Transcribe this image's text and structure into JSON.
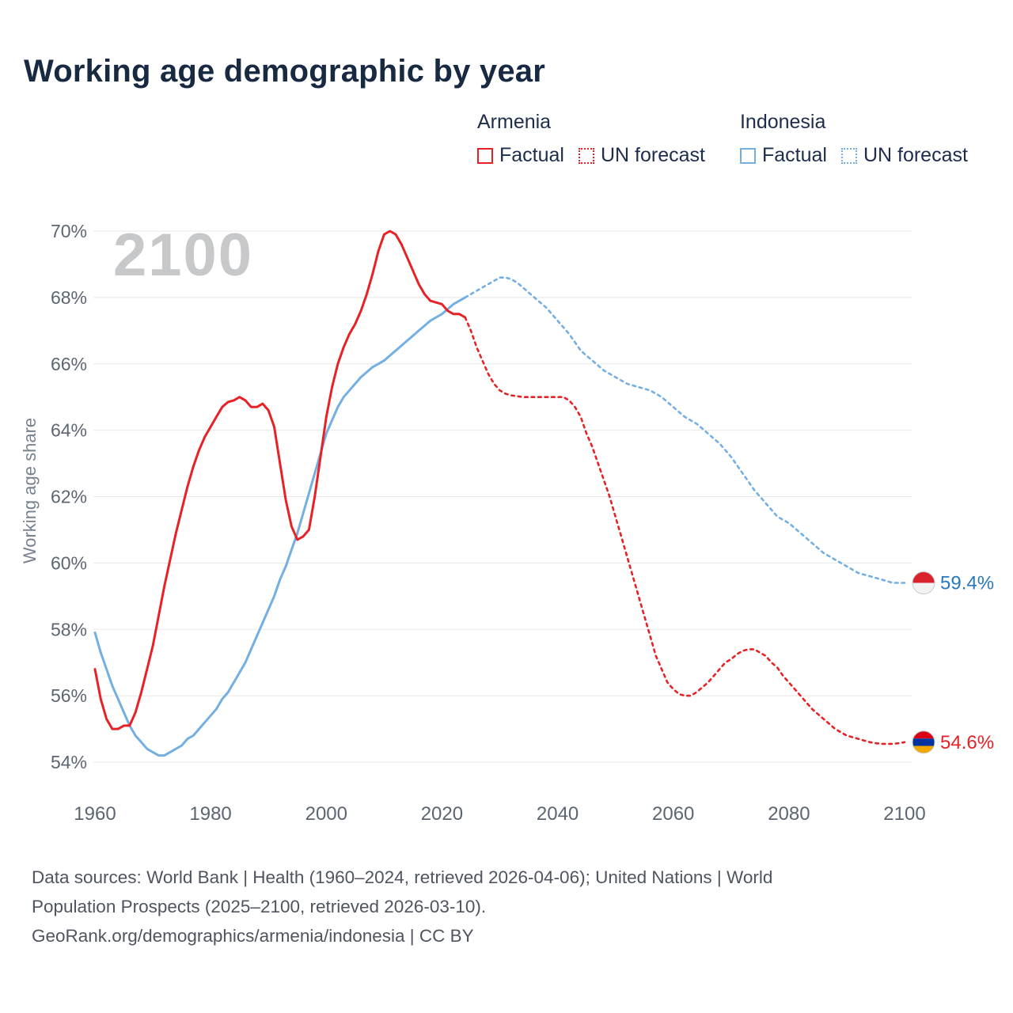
{
  "title": "Working age demographic by year",
  "watermark": "2100",
  "legend": {
    "groups": [
      {
        "country": "Armenia",
        "color": "#e62226",
        "items": [
          {
            "label": "Factual",
            "style": "solid"
          },
          {
            "label": "UN forecast",
            "style": "dotted"
          }
        ]
      },
      {
        "country": "Indonesia",
        "color": "#74afe3",
        "items": [
          {
            "label": "Factual",
            "style": "solid"
          },
          {
            "label": "UN forecast",
            "style": "dotted"
          }
        ]
      }
    ]
  },
  "chart_data": {
    "type": "line",
    "title": "Working age demographic by year",
    "xlabel": "",
    "ylabel": "Working age share",
    "x_ticks": [
      1960,
      1980,
      2000,
      2020,
      2040,
      2060,
      2080,
      2100
    ],
    "y_ticks": [
      54,
      56,
      58,
      60,
      62,
      64,
      66,
      68,
      70
    ],
    "y_suffix": "%",
    "xlim": [
      1960,
      2104
    ],
    "ylim": [
      53.4,
      70.6
    ],
    "grid": "horizontal",
    "legend_position": "top-right",
    "series": [
      {
        "name": "Indonesia Factual",
        "color": "#74afe3",
        "dash": false,
        "points": [
          [
            1960,
            57.9
          ],
          [
            1961,
            57.3
          ],
          [
            1962,
            56.8
          ],
          [
            1963,
            56.3
          ],
          [
            1964,
            55.9
          ],
          [
            1965,
            55.5
          ],
          [
            1966,
            55.1
          ],
          [
            1967,
            54.8
          ],
          [
            1968,
            54.6
          ],
          [
            1969,
            54.4
          ],
          [
            1970,
            54.3
          ],
          [
            1971,
            54.2
          ],
          [
            1972,
            54.2
          ],
          [
            1973,
            54.3
          ],
          [
            1974,
            54.4
          ],
          [
            1975,
            54.5
          ],
          [
            1976,
            54.7
          ],
          [
            1977,
            54.8
          ],
          [
            1978,
            55.0
          ],
          [
            1979,
            55.2
          ],
          [
            1980,
            55.4
          ],
          [
            1981,
            55.6
          ],
          [
            1982,
            55.9
          ],
          [
            1983,
            56.1
          ],
          [
            1984,
            56.4
          ],
          [
            1985,
            56.7
          ],
          [
            1986,
            57.0
          ],
          [
            1987,
            57.4
          ],
          [
            1988,
            57.8
          ],
          [
            1989,
            58.2
          ],
          [
            1990,
            58.6
          ],
          [
            1991,
            59.0
          ],
          [
            1992,
            59.5
          ],
          [
            1993,
            59.9
          ],
          [
            1994,
            60.4
          ],
          [
            1995,
            60.9
          ],
          [
            1996,
            61.5
          ],
          [
            1997,
            62.1
          ],
          [
            1998,
            62.7
          ],
          [
            1999,
            63.3
          ],
          [
            2000,
            63.9
          ],
          [
            2001,
            64.3
          ],
          [
            2002,
            64.7
          ],
          [
            2003,
            65.0
          ],
          [
            2004,
            65.2
          ],
          [
            2005,
            65.4
          ],
          [
            2006,
            65.6
          ],
          [
            2007,
            65.75
          ],
          [
            2008,
            65.9
          ],
          [
            2009,
            66.0
          ],
          [
            2010,
            66.1
          ],
          [
            2011,
            66.25
          ],
          [
            2012,
            66.4
          ],
          [
            2013,
            66.55
          ],
          [
            2014,
            66.7
          ],
          [
            2015,
            66.85
          ],
          [
            2016,
            67.0
          ],
          [
            2017,
            67.15
          ],
          [
            2018,
            67.3
          ],
          [
            2019,
            67.4
          ],
          [
            2020,
            67.5
          ],
          [
            2021,
            67.65
          ],
          [
            2022,
            67.8
          ],
          [
            2023,
            67.9
          ],
          [
            2024,
            68.0
          ]
        ]
      },
      {
        "name": "Indonesia UN forecast",
        "color": "#74afe3",
        "dash": true,
        "points": [
          [
            2024,
            68.0
          ],
          [
            2025,
            68.1
          ],
          [
            2026,
            68.2
          ],
          [
            2027,
            68.3
          ],
          [
            2028,
            68.4
          ],
          [
            2029,
            68.5
          ],
          [
            2030,
            68.6
          ],
          [
            2031,
            68.6
          ],
          [
            2032,
            68.55
          ],
          [
            2033,
            68.45
          ],
          [
            2034,
            68.3
          ],
          [
            2035,
            68.15
          ],
          [
            2036,
            68.0
          ],
          [
            2037,
            67.85
          ],
          [
            2038,
            67.7
          ],
          [
            2039,
            67.5
          ],
          [
            2040,
            67.3
          ],
          [
            2041,
            67.1
          ],
          [
            2042,
            66.9
          ],
          [
            2043,
            66.65
          ],
          [
            2044,
            66.4
          ],
          [
            2045,
            66.25
          ],
          [
            2046,
            66.1
          ],
          [
            2047,
            65.95
          ],
          [
            2048,
            65.8
          ],
          [
            2049,
            65.7
          ],
          [
            2050,
            65.6
          ],
          [
            2051,
            65.5
          ],
          [
            2052,
            65.4
          ],
          [
            2053,
            65.35
          ],
          [
            2054,
            65.3
          ],
          [
            2055,
            65.25
          ],
          [
            2056,
            65.2
          ],
          [
            2057,
            65.1
          ],
          [
            2058,
            65.0
          ],
          [
            2059,
            64.85
          ],
          [
            2060,
            64.7
          ],
          [
            2061,
            64.55
          ],
          [
            2062,
            64.4
          ],
          [
            2063,
            64.3
          ],
          [
            2064,
            64.2
          ],
          [
            2065,
            64.05
          ],
          [
            2066,
            63.9
          ],
          [
            2067,
            63.75
          ],
          [
            2068,
            63.6
          ],
          [
            2069,
            63.4
          ],
          [
            2070,
            63.2
          ],
          [
            2071,
            62.95
          ],
          [
            2072,
            62.7
          ],
          [
            2073,
            62.45
          ],
          [
            2074,
            62.2
          ],
          [
            2075,
            62.0
          ],
          [
            2076,
            61.8
          ],
          [
            2077,
            61.6
          ],
          [
            2078,
            61.4
          ],
          [
            2079,
            61.3
          ],
          [
            2080,
            61.2
          ],
          [
            2081,
            61.05
          ],
          [
            2082,
            60.9
          ],
          [
            2083,
            60.75
          ],
          [
            2084,
            60.6
          ],
          [
            2085,
            60.45
          ],
          [
            2086,
            60.3
          ],
          [
            2087,
            60.2
          ],
          [
            2088,
            60.1
          ],
          [
            2089,
            60.0
          ],
          [
            2090,
            59.9
          ],
          [
            2091,
            59.8
          ],
          [
            2092,
            59.7
          ],
          [
            2093,
            59.65
          ],
          [
            2094,
            59.6
          ],
          [
            2095,
            59.55
          ],
          [
            2096,
            59.5
          ],
          [
            2097,
            59.45
          ],
          [
            2098,
            59.4
          ],
          [
            2099,
            59.4
          ],
          [
            2100,
            59.4
          ]
        ]
      },
      {
        "name": "Armenia Factual",
        "color": "#e62226",
        "dash": false,
        "points": [
          [
            1960,
            56.8
          ],
          [
            1961,
            55.9
          ],
          [
            1962,
            55.3
          ],
          [
            1963,
            55.0
          ],
          [
            1964,
            55.0
          ],
          [
            1965,
            55.1
          ],
          [
            1966,
            55.1
          ],
          [
            1967,
            55.5
          ],
          [
            1968,
            56.1
          ],
          [
            1969,
            56.8
          ],
          [
            1970,
            57.5
          ],
          [
            1971,
            58.4
          ],
          [
            1972,
            59.3
          ],
          [
            1973,
            60.1
          ],
          [
            1974,
            60.9
          ],
          [
            1975,
            61.6
          ],
          [
            1976,
            62.3
          ],
          [
            1977,
            62.9
          ],
          [
            1978,
            63.4
          ],
          [
            1979,
            63.8
          ],
          [
            1980,
            64.1
          ],
          [
            1981,
            64.4
          ],
          [
            1982,
            64.7
          ],
          [
            1983,
            64.85
          ],
          [
            1984,
            64.9
          ],
          [
            1985,
            65.0
          ],
          [
            1986,
            64.9
          ],
          [
            1987,
            64.7
          ],
          [
            1988,
            64.7
          ],
          [
            1989,
            64.8
          ],
          [
            1990,
            64.6
          ],
          [
            1991,
            64.1
          ],
          [
            1992,
            63.0
          ],
          [
            1993,
            61.9
          ],
          [
            1994,
            61.1
          ],
          [
            1995,
            60.7
          ],
          [
            1996,
            60.8
          ],
          [
            1997,
            61.0
          ],
          [
            1998,
            62.0
          ],
          [
            1999,
            63.2
          ],
          [
            2000,
            64.4
          ],
          [
            2001,
            65.3
          ],
          [
            2002,
            66.0
          ],
          [
            2003,
            66.5
          ],
          [
            2004,
            66.9
          ],
          [
            2005,
            67.2
          ],
          [
            2006,
            67.6
          ],
          [
            2007,
            68.1
          ],
          [
            2008,
            68.7
          ],
          [
            2009,
            69.4
          ],
          [
            2010,
            69.9
          ],
          [
            2011,
            70.0
          ],
          [
            2012,
            69.9
          ],
          [
            2013,
            69.6
          ],
          [
            2014,
            69.2
          ],
          [
            2015,
            68.8
          ],
          [
            2016,
            68.4
          ],
          [
            2017,
            68.1
          ],
          [
            2018,
            67.9
          ],
          [
            2019,
            67.85
          ],
          [
            2020,
            67.8
          ],
          [
            2021,
            67.6
          ],
          [
            2022,
            67.5
          ],
          [
            2023,
            67.5
          ],
          [
            2024,
            67.4
          ]
        ]
      },
      {
        "name": "Armenia UN forecast",
        "color": "#e62226",
        "dash": true,
        "points": [
          [
            2024,
            67.4
          ],
          [
            2025,
            67.0
          ],
          [
            2026,
            66.5
          ],
          [
            2027,
            66.1
          ],
          [
            2028,
            65.7
          ],
          [
            2029,
            65.4
          ],
          [
            2030,
            65.2
          ],
          [
            2031,
            65.1
          ],
          [
            2032,
            65.05
          ],
          [
            2034,
            65.0
          ],
          [
            2036,
            65.0
          ],
          [
            2038,
            65.0
          ],
          [
            2040,
            65.0
          ],
          [
            2041,
            65.0
          ],
          [
            2042,
            64.9
          ],
          [
            2043,
            64.7
          ],
          [
            2044,
            64.4
          ],
          [
            2045,
            63.9
          ],
          [
            2046,
            63.5
          ],
          [
            2047,
            63.0
          ],
          [
            2048,
            62.5
          ],
          [
            2049,
            62.0
          ],
          [
            2050,
            61.4
          ],
          [
            2051,
            60.8
          ],
          [
            2052,
            60.2
          ],
          [
            2053,
            59.6
          ],
          [
            2054,
            59.0
          ],
          [
            2055,
            58.4
          ],
          [
            2056,
            57.8
          ],
          [
            2057,
            57.2
          ],
          [
            2058,
            56.8
          ],
          [
            2059,
            56.4
          ],
          [
            2060,
            56.2
          ],
          [
            2061,
            56.05
          ],
          [
            2062,
            56.0
          ],
          [
            2063,
            56.0
          ],
          [
            2064,
            56.1
          ],
          [
            2065,
            56.25
          ],
          [
            2066,
            56.4
          ],
          [
            2067,
            56.6
          ],
          [
            2068,
            56.8
          ],
          [
            2069,
            57.0
          ],
          [
            2070,
            57.1
          ],
          [
            2071,
            57.25
          ],
          [
            2072,
            57.35
          ],
          [
            2073,
            57.4
          ],
          [
            2074,
            57.4
          ],
          [
            2075,
            57.3
          ],
          [
            2076,
            57.2
          ],
          [
            2077,
            57.0
          ],
          [
            2078,
            56.85
          ],
          [
            2079,
            56.6
          ],
          [
            2080,
            56.4
          ],
          [
            2081,
            56.2
          ],
          [
            2082,
            56.0
          ],
          [
            2083,
            55.8
          ],
          [
            2084,
            55.6
          ],
          [
            2085,
            55.45
          ],
          [
            2086,
            55.3
          ],
          [
            2087,
            55.15
          ],
          [
            2088,
            55.0
          ],
          [
            2089,
            54.9
          ],
          [
            2090,
            54.8
          ],
          [
            2091,
            54.75
          ],
          [
            2092,
            54.7
          ],
          [
            2093,
            54.65
          ],
          [
            2094,
            54.6
          ],
          [
            2095,
            54.57
          ],
          [
            2096,
            54.55
          ],
          [
            2097,
            54.55
          ],
          [
            2098,
            54.55
          ],
          [
            2099,
            54.57
          ],
          [
            2100,
            54.6
          ]
        ]
      }
    ],
    "end_labels": [
      {
        "text": "59.4%",
        "value": 59.4,
        "color": "#2878be",
        "flag": "indonesia-flag",
        "flag_stripes": [
          "#d8232c",
          "#f2f2f2"
        ]
      },
      {
        "text": "54.6%",
        "value": 54.6,
        "color": "#e62226",
        "flag": "armenia-flag",
        "flag_stripes": [
          "#d90012",
          "#0033a0",
          "#f2a800"
        ]
      }
    ]
  },
  "footer": {
    "line1": "Data sources: World Bank | Health (1960–2024, retrieved 2026-04-06); United Nations | World",
    "line2": "Population Prospects (2025–2100, retrieved 2026-03-10).",
    "line3": "GeoRank.org/demographics/armenia/indonesia | CC BY"
  }
}
